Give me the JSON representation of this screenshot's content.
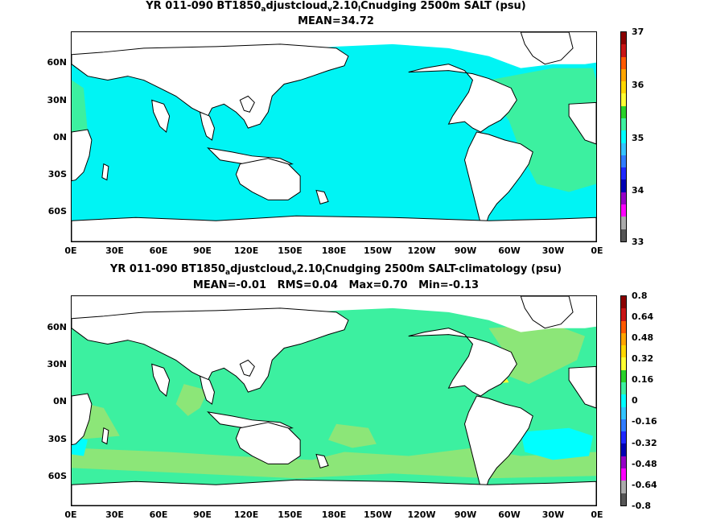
{
  "top_panel": {
    "title_parts": [
      "YR 011-090 BT1850",
      "a",
      "djustcloud",
      "v",
      "2.10",
      "l",
      "Cnudging 2500m SALT (psu)"
    ],
    "subtitle": "MEAN=34.72",
    "colorbar_labels": [
      "37",
      "36",
      "35",
      "34",
      "33"
    ],
    "colorbar_colors": [
      "#8b0000",
      "#c81414",
      "#ff5a00",
      "#ffa500",
      "#ffd700",
      "#ffff33",
      "#28d228",
      "#3cf0a0",
      "#00ffff",
      "#33c4ff",
      "#2f7cff",
      "#1e28ff",
      "#0000b4",
      "#9600c8",
      "#ff00ff",
      "#aaaaaa",
      "#555555"
    ],
    "ocean_color": "#00f4f4",
    "ocean_color_alt": "#3cf0a0"
  },
  "bottom_panel": {
    "title_parts": [
      "YR 011-090 BT1850",
      "a",
      "djustcloud",
      "v",
      "2.10",
      "l",
      "Cnudging 2500m SALT-climatology (psu)"
    ],
    "subtitle": "MEAN=-0.01   RMS=0.04   Max=0.70   Min=-0.13",
    "colorbar_labels": [
      "0.8",
      "0.64",
      "0.48",
      "0.32",
      "0.16",
      "0",
      "-0.16",
      "-0.32",
      "-0.48",
      "-0.64",
      "-0.8"
    ],
    "colorbar_colors": [
      "#8b0000",
      "#c81414",
      "#ff5a00",
      "#ffa500",
      "#ffd700",
      "#ffff33",
      "#28d228",
      "#3cf0a0",
      "#00ffff",
      "#33c4ff",
      "#2f7cff",
      "#1e28ff",
      "#0000b4",
      "#9600c8",
      "#ff00ff",
      "#aaaaaa",
      "#555555"
    ],
    "ocean_color": "#3cf0a0",
    "ocean_color_alt": "#8ce678"
  },
  "axes": {
    "lat_labels": [
      "60N",
      "30N",
      "0N",
      "30S",
      "60S"
    ],
    "lon_labels": [
      "0E",
      "30E",
      "60E",
      "90E",
      "120E",
      "150E",
      "180E",
      "150W",
      "120W",
      "90W",
      "60W",
      "30W",
      "0E"
    ]
  }
}
